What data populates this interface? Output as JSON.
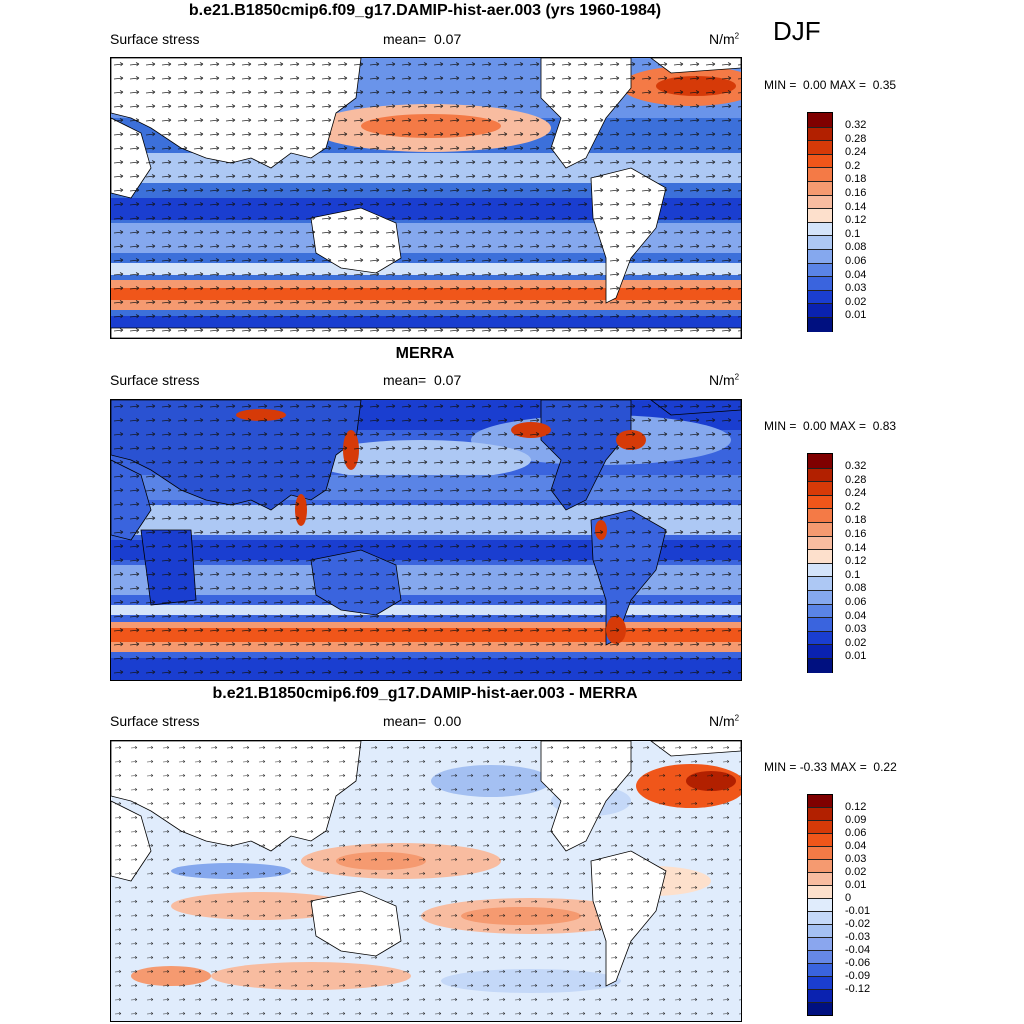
{
  "season": "DJF",
  "panels": [
    {
      "title": "b.e21.B1850cmip6.f09_g17.DAMIP-hist-aer.003 (yrs 1960-1984)",
      "left_label": "Surface stress",
      "mean_label": "mean=",
      "mean_value": "0.07",
      "units": "N/m",
      "units_sup": "2",
      "min_label": "MIN =",
      "min_value": "0.00",
      "max_label": "MAX =",
      "max_value": "0.35",
      "colorbar_ticks": [
        "0.32",
        "0.28",
        "0.24",
        "0.2",
        "0.18",
        "0.16",
        "0.14",
        "0.12",
        "0.1",
        "0.08",
        "0.06",
        "0.04",
        "0.03",
        "0.02",
        "0.01"
      ]
    },
    {
      "title": "MERRA",
      "left_label": "Surface stress",
      "mean_label": "mean=",
      "mean_value": "0.07",
      "units": "N/m",
      "units_sup": "2",
      "min_label": "MIN =",
      "min_value": "0.00",
      "max_label": "MAX =",
      "max_value": "0.83",
      "colorbar_ticks": [
        "0.32",
        "0.28",
        "0.24",
        "0.2",
        "0.18",
        "0.16",
        "0.14",
        "0.12",
        "0.1",
        "0.08",
        "0.06",
        "0.04",
        "0.03",
        "0.02",
        "0.01"
      ]
    },
    {
      "title": "b.e21.B1850cmip6.f09_g17.DAMIP-hist-aer.003 - MERRA",
      "left_label": "Surface stress",
      "mean_label": "mean=",
      "mean_value": "0.00",
      "units": "N/m",
      "units_sup": "2",
      "min_label": "MIN =",
      "min_value": "-0.33",
      "max_label": "MAX =",
      "max_value": "0.22",
      "colorbar_ticks": [
        "0.12",
        "0.09",
        "0.06",
        "0.04",
        "0.03",
        "0.02",
        "0.01",
        "0",
        "-0.01",
        "-0.02",
        "-0.03",
        "-0.04",
        "-0.06",
        "-0.09",
        "-0.12"
      ]
    }
  ],
  "colors": {
    "seq_scale": [
      "#7f0000",
      "#b22000",
      "#d63a08",
      "#f0561a",
      "#f47a46",
      "#f59a70",
      "#f8bca0",
      "#fde0cc",
      "#d4e4fa",
      "#adc8f4",
      "#85a8ee",
      "#5a84e6",
      "#3a64de",
      "#1a3ed0",
      "#0a22b0",
      "#001080"
    ],
    "div_scale": [
      "#7f0000",
      "#b22000",
      "#d63a08",
      "#f0561a",
      "#f47a46",
      "#f59a70",
      "#f8bca0",
      "#fde0cc",
      "#e0ecfc",
      "#c4d8f8",
      "#a4c0f2",
      "#8aa6ee",
      "#6688e6",
      "#3a64de",
      "#1a3ed0",
      "#0a22b0",
      "#001080"
    ]
  }
}
